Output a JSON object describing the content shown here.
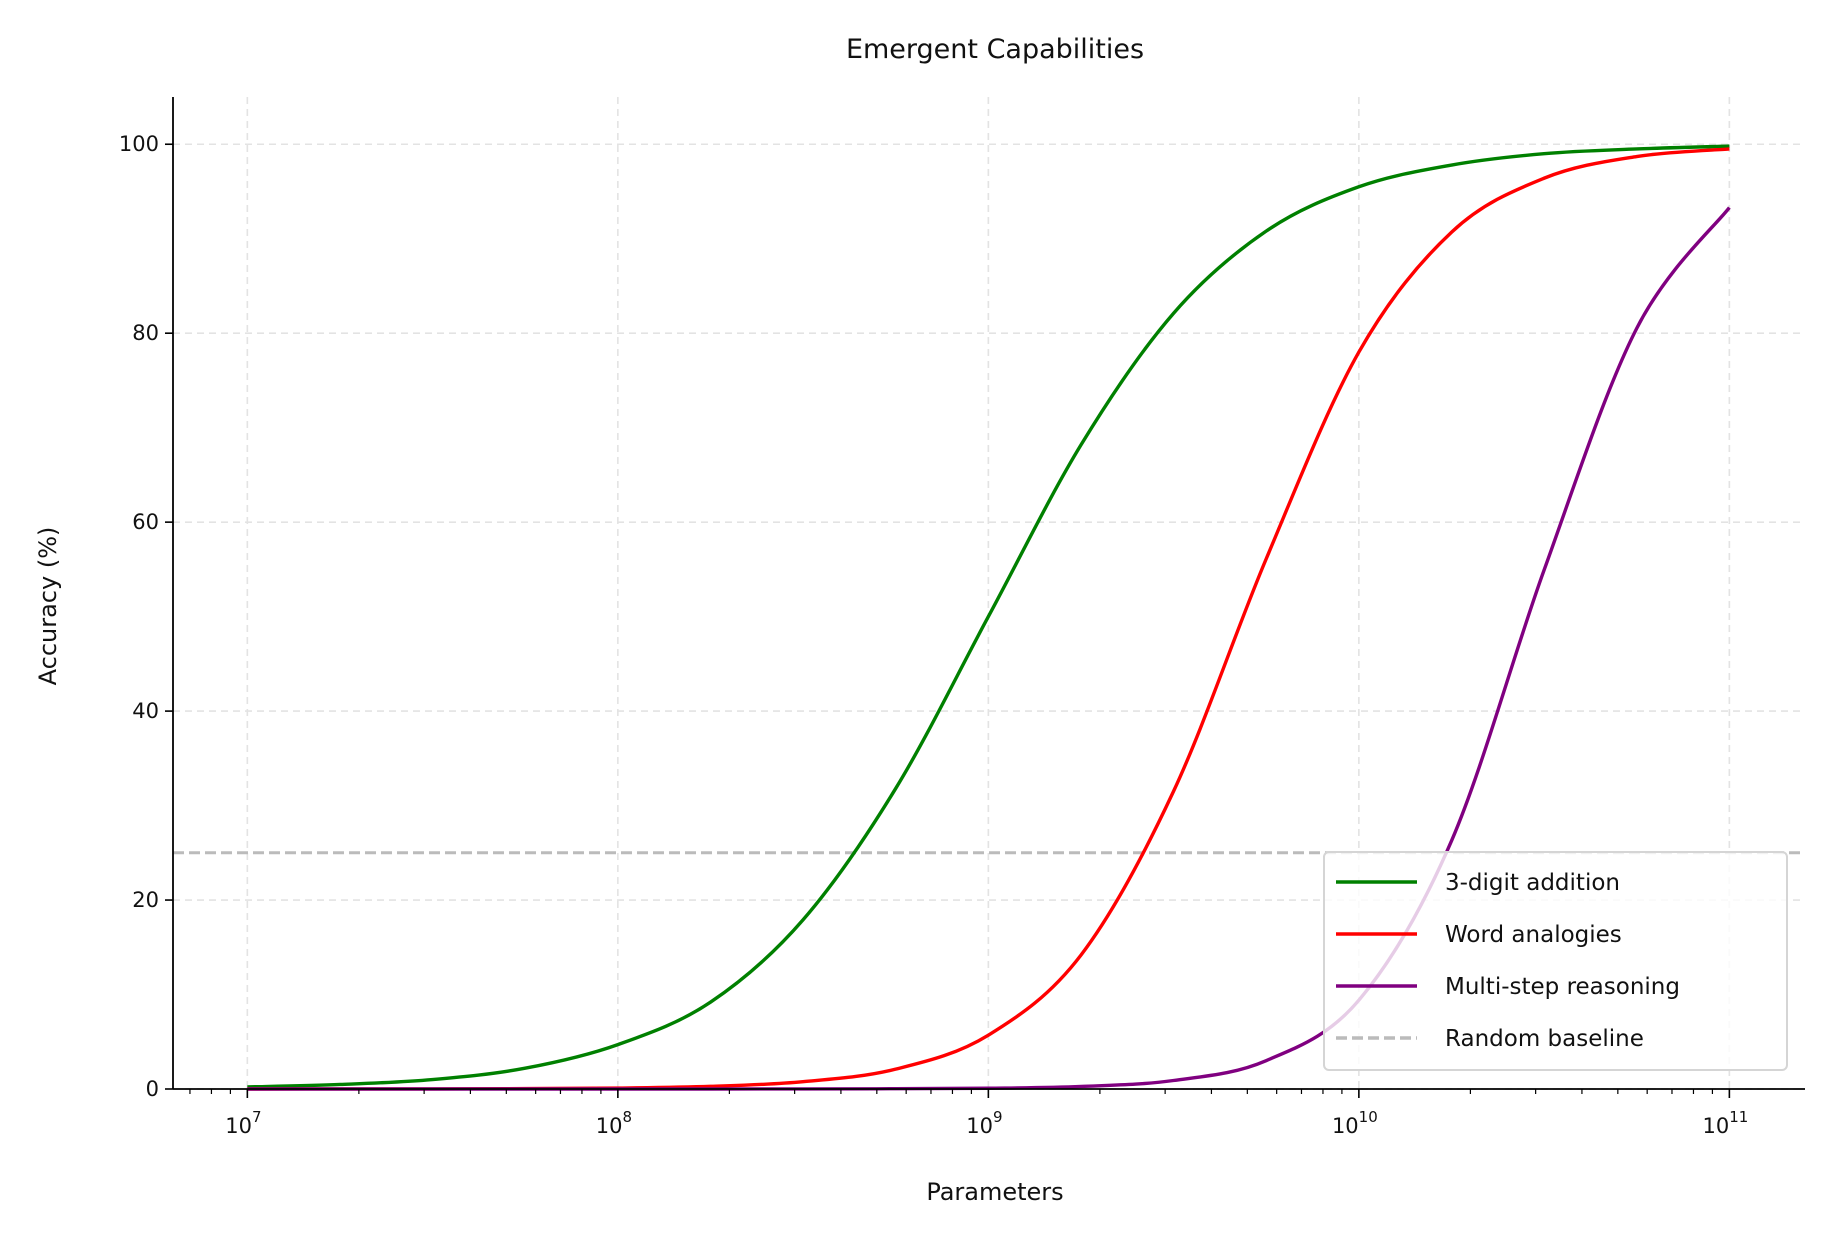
{
  "chart_data": {
    "type": "line",
    "title": "Emergent Capabilities",
    "xlabel": "Parameters",
    "ylabel": "Accuracy (%)",
    "x_scale": "log",
    "xlim": [
      6300000.0,
      160000000000.0
    ],
    "ylim": [
      0,
      105
    ],
    "grid": true,
    "legend_position": "lower right",
    "x_ticks": [
      {
        "base": "10",
        "exp": "7"
      },
      {
        "base": "10",
        "exp": "8"
      },
      {
        "base": "10",
        "exp": "9"
      },
      {
        "base": "10",
        "exp": "10"
      },
      {
        "base": "10",
        "exp": "11"
      }
    ],
    "y_ticks": [
      "0",
      "20",
      "40",
      "60",
      "80",
      "100"
    ],
    "x": [
      10000000.0,
      17800000.0,
      31600000.0,
      56200000.0,
      100000000.0,
      178000000.0,
      316000000.0,
      562000000.0,
      1000000000.0,
      1780000000.0,
      3160000000.0,
      5620000000.0,
      10000000000.0,
      17800000000.0,
      31600000000.0,
      56200000000.0,
      100000000000.0
    ],
    "series": [
      {
        "name": "3-digit addition",
        "color": "#008000",
        "values": [
          0.22,
          0.48,
          1.0,
          2.2,
          4.7,
          9.2,
          17.9,
          31.8,
          50,
          68.2,
          82.1,
          90.8,
          95.5,
          97.8,
          99.0,
          99.5,
          99.8
        ]
      },
      {
        "name": "Word analogies",
        "color": "#ff0000",
        "values": [
          0.0,
          0.01,
          0.01,
          0.04,
          0.1,
          0.28,
          0.77,
          2.1,
          5.7,
          14.2,
          31.5,
          56.1,
          78.0,
          90.7,
          96.4,
          98.7,
          99.5
        ]
      },
      {
        "name": "Multi-step reasoning",
        "color": "#800080",
        "values": [
          0,
          0,
          0,
          0,
          0,
          0,
          0.01,
          0.03,
          0.08,
          0.27,
          0.9,
          3.0,
          9.4,
          26.3,
          54.9,
          80.5,
          93.3
        ]
      }
    ],
    "baseline": {
      "name": "Random baseline",
      "value": 25,
      "color": "#bbbbbb",
      "style": "dashed"
    }
  }
}
